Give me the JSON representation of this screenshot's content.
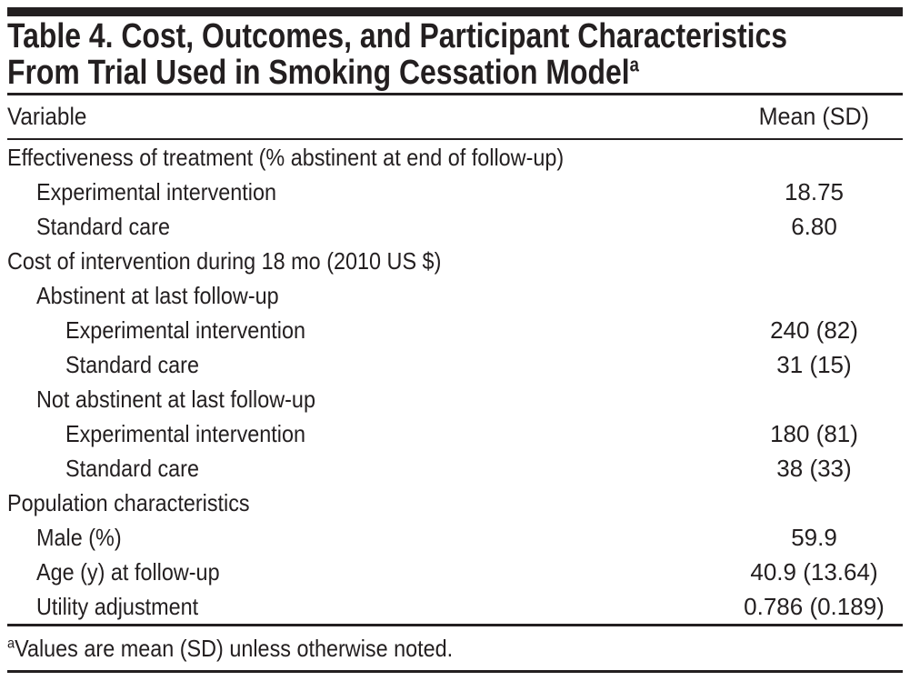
{
  "title": {
    "line1": "Table 4. Cost, Outcomes, and Participant Characteristics",
    "line2": "From Trial Used in Smoking Cessation Model",
    "footnote_marker": "a"
  },
  "table": {
    "columns": [
      "Variable",
      "Mean (SD)"
    ],
    "rows": [
      {
        "label": "Effectiveness of treatment (% abstinent at end of follow-up)",
        "indent": 0,
        "value": ""
      },
      {
        "label": "Experimental intervention",
        "indent": 1,
        "value": "18.75"
      },
      {
        "label": "Standard care",
        "indent": 1,
        "value": "6.80"
      },
      {
        "label": "Cost of intervention during 18 mo (2010 US $)",
        "indent": 0,
        "value": ""
      },
      {
        "label": "Abstinent at last follow-up",
        "indent": 1,
        "value": ""
      },
      {
        "label": "Experimental intervention",
        "indent": 2,
        "value": "240 (82)"
      },
      {
        "label": "Standard care",
        "indent": 2,
        "value": "31 (15)"
      },
      {
        "label": "Not abstinent at last follow-up",
        "indent": 1,
        "value": ""
      },
      {
        "label": "Experimental intervention",
        "indent": 2,
        "value": "180 (81)"
      },
      {
        "label": "Standard care",
        "indent": 2,
        "value": "38 (33)"
      },
      {
        "label": "Population characteristics",
        "indent": 0,
        "value": ""
      },
      {
        "label": "Male (%)",
        "indent": 1,
        "value": "59.9"
      },
      {
        "label": "Age (y) at follow-up",
        "indent": 1,
        "value": "40.9 (13.64)"
      },
      {
        "label": "Utility adjustment",
        "indent": 1,
        "value": "0.786 (0.189)"
      }
    ]
  },
  "footnote": {
    "marker": "a",
    "text": "Values are mean (SD) unless otherwise noted."
  },
  "colors": {
    "ink": "#231f20",
    "background": "#ffffff"
  }
}
